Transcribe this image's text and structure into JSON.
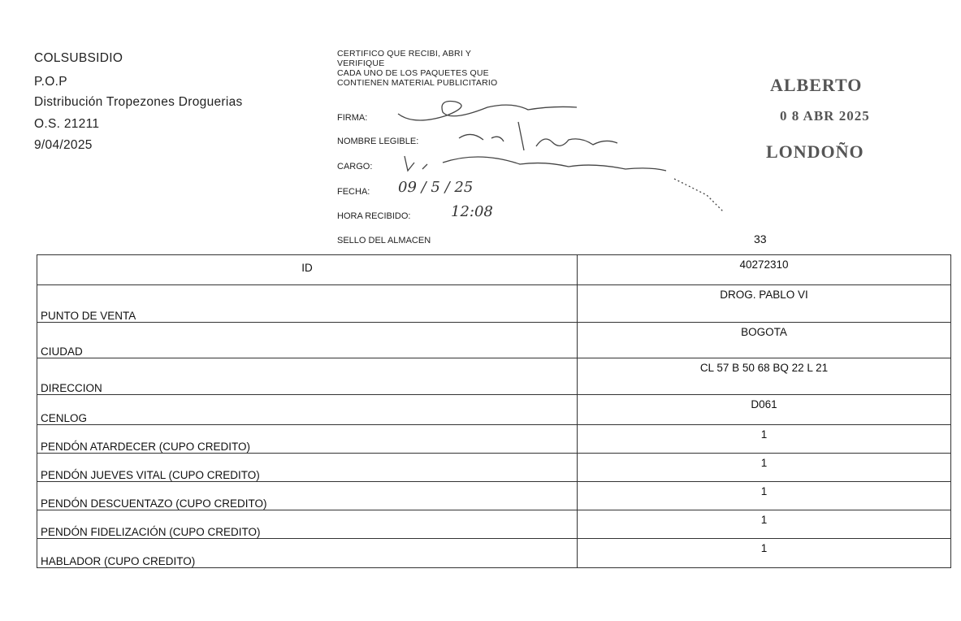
{
  "header": {
    "lines": [
      "COLSUBSIDIO",
      "P.O.P",
      "Distribución Tropezones Droguerias",
      "O.S. 21211",
      "9/04/2025"
    ]
  },
  "certificate": {
    "text": [
      "CERTIFICO QUE RECIBI, ABRI Y",
      "VERIFIQUE",
      "CADA  UNO DE LOS PAQUETES QUE",
      "CONTIENEN MATERIAL PUBLICITARIO"
    ],
    "firma_label": "FIRMA:",
    "nombre_label": "NOMBRE LEGIBLE:",
    "cargo_label": "CARGO:",
    "fecha_label": "FECHA:",
    "fecha_value": "09 / 5 / 25",
    "hora_label": "HORA RECIBIDO:",
    "hora_value": "12:08",
    "sello_label": "SELLO DEL ALMACEN",
    "page_number": "33"
  },
  "stamp": {
    "line1": "ALBERTO",
    "line2": "0 8 ABR 2025",
    "line3": "LONDOÑO"
  },
  "table": {
    "rows": [
      {
        "label": "ID",
        "value": "40272310"
      },
      {
        "label": "PUNTO DE VENTA",
        "value": "DROG. PABLO VI"
      },
      {
        "label": "CIUDAD",
        "value": "BOGOTA"
      },
      {
        "label": "DIRECCION",
        "value": "CL 57 B 50 68 BQ 22 L 21"
      },
      {
        "label": "CENLOG",
        "value": "D061"
      },
      {
        "label": "PENDÓN  ATARDECER (CUPO CREDITO)",
        "value": "1"
      },
      {
        "label": "PENDÓN JUEVES VITAL (CUPO CREDITO)",
        "value": "1"
      },
      {
        "label": "PENDÓN DESCUENTAZO (CUPO CREDITO)",
        "value": "1"
      },
      {
        "label": "PENDÓN FIDELIZACIÓN (CUPO CREDITO)",
        "value": "1"
      },
      {
        "label": "HABLADOR (CUPO CREDITO)",
        "value": "1"
      }
    ]
  }
}
